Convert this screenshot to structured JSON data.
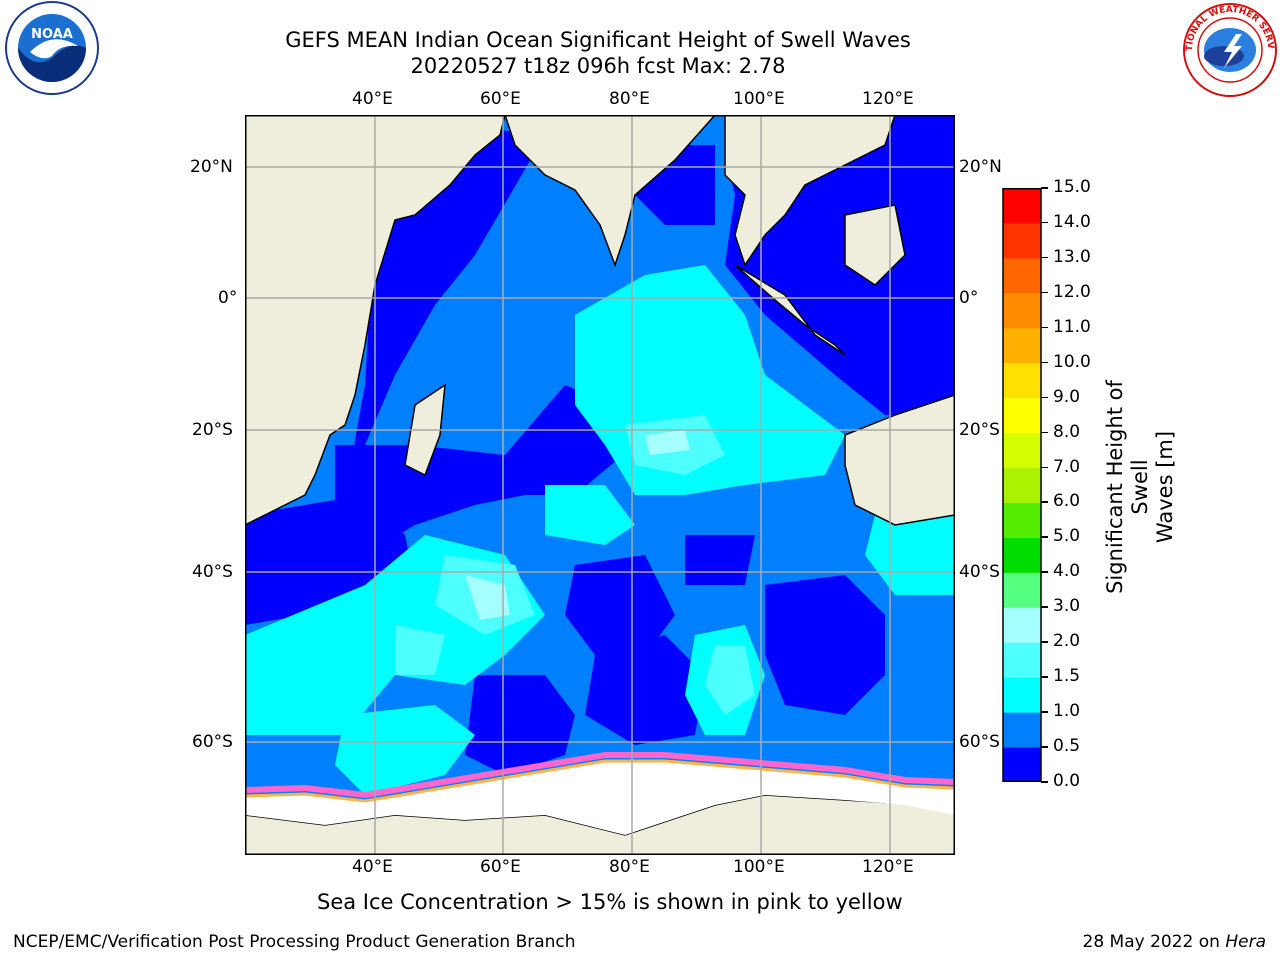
{
  "title_line1": "GEFS MEAN Indian Ocean Significant Height of Swell Waves",
  "title_line2": "20220527 t18z 096h fcst   Max: 2.78",
  "lon_labels": [
    "40°E",
    "60°E",
    "80°E",
    "100°E",
    "120°E"
  ],
  "lat_labels": [
    "20°N",
    "0°",
    "20°S",
    "40°S",
    "60°S"
  ],
  "colorbar": {
    "label": "Significant Height of Swell Waves [m]",
    "label_line1": "Significant Height of Swell",
    "label_line2": "Waves [m]",
    "ticks": [
      "0.0",
      "0.5",
      "1.0",
      "1.5",
      "2.0",
      "3.0",
      "4.0",
      "5.0",
      "6.0",
      "7.0",
      "8.0",
      "9.0",
      "10.0",
      "11.0",
      "12.0",
      "13.0",
      "14.0",
      "15.0"
    ],
    "colors": [
      "#0000ff",
      "#0080ff",
      "#00ffff",
      "#4dffff",
      "#a6ffff",
      "#55ff7f",
      "#00dd00",
      "#55ee00",
      "#aaf200",
      "#d4ff00",
      "#ffff00",
      "#ffe000",
      "#ffb000",
      "#ff8c00",
      "#ff6600",
      "#ff3300",
      "#ff0000"
    ]
  },
  "map_colors": {
    "land": "#efeedd",
    "sea_ice": "#ffffff",
    "ice_edge_pink": "#ff66cc",
    "ice_edge_orange": "#ffb347",
    "grid": "#aaaaaa",
    "coast": "#000000"
  },
  "ice_note": "Sea Ice Concentration > 15% is shown in pink to yellow",
  "footer_left": "NCEP/EMC/Verification Post Processing Product Generation Branch",
  "footer_date": "28 May 2022 on",
  "footer_host": "Hera",
  "logos": {
    "noaa_text": "NOAA",
    "nws_text": "NATIONAL WEATHER SERVICE"
  },
  "chart_data": {
    "type": "heatmap",
    "title": "GEFS MEAN Indian Ocean Significant Height of Swell Waves",
    "subtitle": "20220527 t18z 096h fcst   Max: 2.78",
    "variable": "Significant Height of Swell Waves [m]",
    "max": 2.78,
    "lon_range": [
      20,
      130
    ],
    "lat_range": [
      -70,
      27
    ],
    "lon_ticks": [
      40,
      60,
      80,
      100,
      120
    ],
    "lat_ticks": [
      20,
      0,
      -20,
      -40,
      -60
    ],
    "levels": [
      0.0,
      0.5,
      1.0,
      1.5,
      2.0,
      3.0,
      4.0,
      5.0,
      6.0,
      7.0,
      8.0,
      9.0,
      10.0,
      11.0,
      12.0,
      13.0,
      14.0,
      15.0
    ],
    "grid": true
  }
}
